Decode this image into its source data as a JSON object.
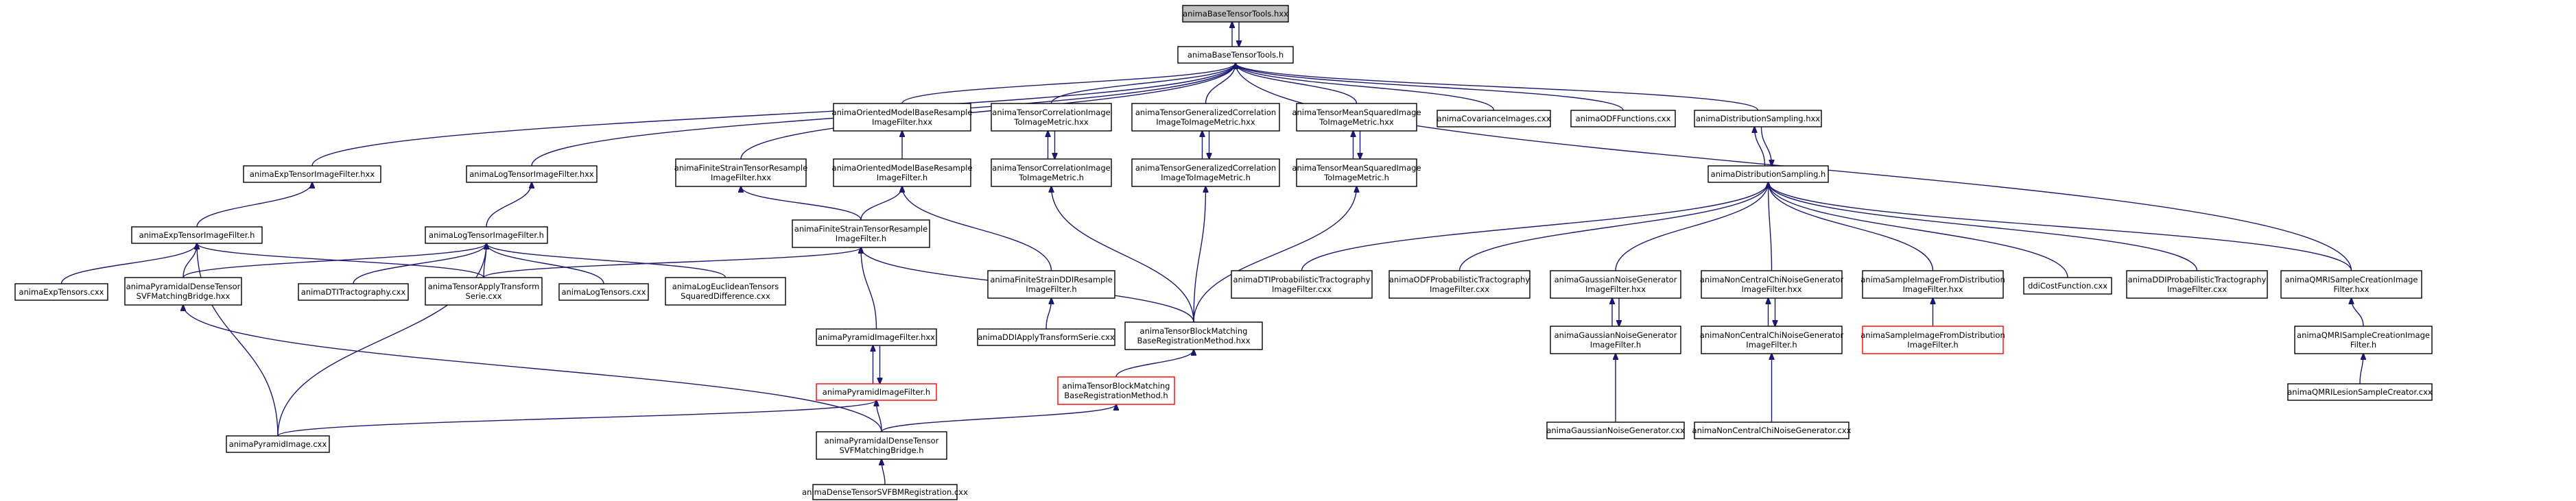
{
  "colors": {
    "edge": "#191970",
    "node_border": "#000000",
    "node_fill": "#ffffff",
    "highlight_fill": "#bfbfbf",
    "highlight_border": "#000000",
    "red_border": "#ff0000"
  },
  "nodes": [
    {
      "id": "n_base_hxx",
      "lines": [
        "animaBaseTensorTools.hxx"
      ],
      "style": "highlight"
    },
    {
      "id": "n_base_h",
      "lines": [
        "animaBaseTensorTools.h"
      ],
      "style": "normal"
    },
    {
      "id": "n_exp_filt_hxx",
      "lines": [
        "animaExpTensorImageFilter.hxx"
      ],
      "style": "normal"
    },
    {
      "id": "n_log_filt_hxx",
      "lines": [
        "animaLogTensorImageFilter.hxx"
      ],
      "style": "normal"
    },
    {
      "id": "n_fs_resample_hxx",
      "lines": [
        "animaFiniteStrainTensorResample",
        "ImageFilter.hxx"
      ],
      "style": "normal"
    },
    {
      "id": "n_om_base_hxx",
      "lines": [
        "animaOrientedModelBaseResample",
        "ImageFilter.hxx"
      ],
      "style": "normal"
    },
    {
      "id": "n_tc_metric_hxx",
      "lines": [
        "animaTensorCorrelationImage",
        "ToImageMetric.hxx"
      ],
      "style": "normal"
    },
    {
      "id": "n_tgc_metric_hxx",
      "lines": [
        "animaTensorGeneralizedCorrelation",
        "ImageToImageMetric.hxx"
      ],
      "style": "normal"
    },
    {
      "id": "n_tms_metric_hxx",
      "lines": [
        "animaTensorMeanSquaredImage",
        "ToImageMetric.hxx"
      ],
      "style": "normal"
    },
    {
      "id": "n_cov_cxx",
      "lines": [
        "animaCovarianceImages.cxx"
      ],
      "style": "normal"
    },
    {
      "id": "n_odf_cxx",
      "lines": [
        "animaODFFunctions.cxx"
      ],
      "style": "normal"
    },
    {
      "id": "n_dist_hxx",
      "lines": [
        "animaDistributionSampling.hxx"
      ],
      "style": "normal"
    },
    {
      "id": "n_qmri_hxx",
      "lines": [
        "animaQMRISampleCreationImage",
        "Filter.hxx"
      ],
      "style": "normal"
    },
    {
      "id": "n_om_base_h",
      "lines": [
        "animaOrientedModelBaseResample",
        "ImageFilter.h"
      ],
      "style": "normal"
    },
    {
      "id": "n_tc_metric_h",
      "lines": [
        "animaTensorCorrelationImage",
        "ToImageMetric.h"
      ],
      "style": "normal"
    },
    {
      "id": "n_tgc_metric_h",
      "lines": [
        "animaTensorGeneralizedCorrelation",
        "ImageToImageMetric.h"
      ],
      "style": "normal"
    },
    {
      "id": "n_tms_metric_h",
      "lines": [
        "animaTensorMeanSquaredImage",
        "ToImageMetric.h"
      ],
      "style": "normal"
    },
    {
      "id": "n_dist_h",
      "lines": [
        "animaDistributionSampling.h"
      ],
      "style": "normal"
    },
    {
      "id": "n_exp_filt_h",
      "lines": [
        "animaExpTensorImageFilter.h"
      ],
      "style": "normal"
    },
    {
      "id": "n_log_filt_h",
      "lines": [
        "animaLogTensorImageFilter.h"
      ],
      "style": "normal"
    },
    {
      "id": "n_fs_resample_h",
      "lines": [
        "animaFiniteStrainTensorResample",
        "ImageFilter.h"
      ],
      "style": "normal"
    },
    {
      "id": "n_fsddi_h",
      "lines": [
        "animaFiniteStrainDDIResample",
        "ImageFilter.h"
      ],
      "style": "normal"
    },
    {
      "id": "n_dti_prob_cxx",
      "lines": [
        "animaDTIProbabilisticTractography",
        "ImageFilter.cxx"
      ],
      "style": "normal"
    },
    {
      "id": "n_odf_prob_cxx",
      "lines": [
        "animaODFProbabilisticTractography",
        "ImageFilter.cxx"
      ],
      "style": "normal"
    },
    {
      "id": "n_gauss_hxx",
      "lines": [
        "animaGaussianNoiseGenerator",
        "ImageFilter.hxx"
      ],
      "style": "normal"
    },
    {
      "id": "n_ncchi_hxx",
      "lines": [
        "animaNonCentralChiNoiseGenerator",
        "ImageFilter.hxx"
      ],
      "style": "normal"
    },
    {
      "id": "n_sample_hxx",
      "lines": [
        "animaSampleImageFromDistribution",
        "ImageFilter.hxx"
      ],
      "style": "normal"
    },
    {
      "id": "n_ddicost_cxx",
      "lines": [
        "ddiCostFunction.cxx"
      ],
      "style": "normal"
    },
    {
      "id": "n_ddi_prob_cxx",
      "lines": [
        "animaDDIProbabilisticTractography",
        "ImageFilter.cxx"
      ],
      "style": "normal"
    },
    {
      "id": "n_qmri_h",
      "lines": [
        "animaQMRISampleCreationImage",
        "Filter.h"
      ],
      "style": "normal"
    },
    {
      "id": "n_exp_cxx",
      "lines": [
        "animaExpTensors.cxx"
      ],
      "style": "normal"
    },
    {
      "id": "n_pyr_dense_bridge_hxx",
      "lines": [
        "animaPyramidalDenseTensor",
        "SVFMatchingBridge.hxx"
      ],
      "style": "normal"
    },
    {
      "id": "n_dti_tract_cxx",
      "lines": [
        "animaDTITractography.cxx"
      ],
      "style": "normal"
    },
    {
      "id": "n_apply_transform_cxx",
      "lines": [
        "animaTensorApplyTransform",
        "Serie.cxx"
      ],
      "style": "normal"
    },
    {
      "id": "n_log_cxx",
      "lines": [
        "animaLogTensors.cxx"
      ],
      "style": "normal"
    },
    {
      "id": "n_logeuc_cxx",
      "lines": [
        "animaLogEuclideanTensors",
        "SquaredDifference.cxx"
      ],
      "style": "normal"
    },
    {
      "id": "n_pyr_filt_hxx",
      "lines": [
        "animaPyramidImageFilter.hxx"
      ],
      "style": "normal"
    },
    {
      "id": "n_ddi_apply_cxx",
      "lines": [
        "animaDDIApplyTransformSerie.cxx"
      ],
      "style": "normal"
    },
    {
      "id": "n_tbm_hxx",
      "lines": [
        "animaTensorBlockMatching",
        "BaseRegistrationMethod.hxx"
      ],
      "style": "normal"
    },
    {
      "id": "n_gauss_h",
      "lines": [
        "animaGaussianNoiseGenerator",
        "ImageFilter.h"
      ],
      "style": "normal"
    },
    {
      "id": "n_ncchi_h",
      "lines": [
        "animaNonCentralChiNoiseGenerator",
        "ImageFilter.h"
      ],
      "style": "normal"
    },
    {
      "id": "n_sample_h",
      "lines": [
        "animaSampleImageFromDistribution",
        "ImageFilter.h"
      ],
      "style": "red"
    },
    {
      "id": "n_qmri_lesion_cxx",
      "lines": [
        "animaQMRILesionSampleCreator.cxx"
      ],
      "style": "normal"
    },
    {
      "id": "n_pyr_filt_h",
      "lines": [
        "animaPyramidImageFilter.h"
      ],
      "style": "red"
    },
    {
      "id": "n_tbm_h",
      "lines": [
        "animaTensorBlockMatching",
        "BaseRegistrationMethod.h"
      ],
      "style": "red"
    },
    {
      "id": "n_gauss_cxx",
      "lines": [
        "animaGaussianNoiseGenerator.cxx"
      ],
      "style": "normal"
    },
    {
      "id": "n_ncchi_cxx",
      "lines": [
        "animaNonCentralChiNoiseGenerator.cxx"
      ],
      "style": "normal"
    },
    {
      "id": "n_pyr_img_cxx",
      "lines": [
        "animaPyramidImage.cxx"
      ],
      "style": "normal"
    },
    {
      "id": "n_pyr_dense_bridge_h",
      "lines": [
        "animaPyramidalDenseTensor",
        "SVFMatchingBridge.h"
      ],
      "style": "normal"
    },
    {
      "id": "n_dense_svfbm_cxx",
      "lines": [
        "animaDenseTensorSVFBMRegistration.cxx"
      ],
      "style": "normal"
    }
  ],
  "edges": [
    [
      "n_base_h",
      "n_base_hxx"
    ],
    [
      "n_base_hxx",
      "n_base_h"
    ],
    [
      "n_exp_filt_hxx",
      "n_base_h"
    ],
    [
      "n_log_filt_hxx",
      "n_base_h"
    ],
    [
      "n_fs_resample_hxx",
      "n_base_h"
    ],
    [
      "n_om_base_hxx",
      "n_base_h"
    ],
    [
      "n_tc_metric_hxx",
      "n_base_h"
    ],
    [
      "n_tgc_metric_hxx",
      "n_base_h"
    ],
    [
      "n_tms_metric_hxx",
      "n_base_h"
    ],
    [
      "n_cov_cxx",
      "n_base_h"
    ],
    [
      "n_odf_cxx",
      "n_base_h"
    ],
    [
      "n_dist_hxx",
      "n_base_h"
    ],
    [
      "n_qmri_hxx",
      "n_base_h"
    ],
    [
      "n_exp_filt_h",
      "n_exp_filt_hxx"
    ],
    [
      "n_log_filt_h",
      "n_log_filt_hxx"
    ],
    [
      "n_fs_resample_h",
      "n_fs_resample_hxx"
    ],
    [
      "n_om_base_h",
      "n_om_base_hxx"
    ],
    [
      "n_tc_metric_h",
      "n_tc_metric_hxx"
    ],
    [
      "n_tc_metric_hxx",
      "n_tc_metric_h"
    ],
    [
      "n_tgc_metric_h",
      "n_tgc_metric_hxx"
    ],
    [
      "n_tgc_metric_hxx",
      "n_tgc_metric_h"
    ],
    [
      "n_tms_metric_h",
      "n_tms_metric_hxx"
    ],
    [
      "n_tms_metric_hxx",
      "n_tms_metric_h"
    ],
    [
      "n_dist_h",
      "n_dist_hxx"
    ],
    [
      "n_dist_hxx",
      "n_dist_h"
    ],
    [
      "n_fs_resample_h",
      "n_om_base_h"
    ],
    [
      "n_fsddi_h",
      "n_om_base_h"
    ],
    [
      "n_tbm_hxx",
      "n_tc_metric_h"
    ],
    [
      "n_tbm_hxx",
      "n_tgc_metric_h"
    ],
    [
      "n_tbm_hxx",
      "n_tms_metric_h"
    ],
    [
      "n_dti_prob_cxx",
      "n_dist_h"
    ],
    [
      "n_odf_prob_cxx",
      "n_dist_h"
    ],
    [
      "n_gauss_hxx",
      "n_dist_h"
    ],
    [
      "n_ncchi_hxx",
      "n_dist_h"
    ],
    [
      "n_sample_hxx",
      "n_dist_h"
    ],
    [
      "n_ddicost_cxx",
      "n_dist_h"
    ],
    [
      "n_ddi_prob_cxx",
      "n_dist_h"
    ],
    [
      "n_qmri_hxx",
      "n_dist_h"
    ],
    [
      "n_qmri_h",
      "n_qmri_hxx"
    ],
    [
      "n_exp_cxx",
      "n_exp_filt_h"
    ],
    [
      "n_pyr_dense_bridge_hxx",
      "n_exp_filt_h"
    ],
    [
      "n_apply_transform_cxx",
      "n_exp_filt_h"
    ],
    [
      "n_pyr_img_cxx",
      "n_exp_filt_h"
    ],
    [
      "n_dti_tract_cxx",
      "n_log_filt_h"
    ],
    [
      "n_apply_transform_cxx",
      "n_log_filt_h"
    ],
    [
      "n_log_cxx",
      "n_log_filt_h"
    ],
    [
      "n_logeuc_cxx",
      "n_log_filt_h"
    ],
    [
      "n_pyr_img_cxx",
      "n_log_filt_h"
    ],
    [
      "n_pyr_dense_bridge_hxx",
      "n_log_filt_h"
    ],
    [
      "n_pyr_filt_hxx",
      "n_fs_resample_h"
    ],
    [
      "n_tbm_hxx",
      "n_fs_resample_h"
    ],
    [
      "n_apply_transform_cxx",
      "n_fs_resample_h"
    ],
    [
      "n_ddi_apply_cxx",
      "n_fsddi_h"
    ],
    [
      "n_gauss_h",
      "n_gauss_hxx"
    ],
    [
      "n_gauss_hxx",
      "n_gauss_h"
    ],
    [
      "n_ncchi_h",
      "n_ncchi_hxx"
    ],
    [
      "n_ncchi_hxx",
      "n_ncchi_h"
    ],
    [
      "n_sample_h",
      "n_sample_hxx"
    ],
    [
      "n_qmri_lesion_cxx",
      "n_qmri_h"
    ],
    [
      "n_pyr_filt_h",
      "n_pyr_filt_hxx"
    ],
    [
      "n_pyr_filt_hxx",
      "n_pyr_filt_h"
    ],
    [
      "n_tbm_h",
      "n_tbm_hxx"
    ],
    [
      "n_gauss_cxx",
      "n_gauss_h"
    ],
    [
      "n_ncchi_cxx",
      "n_ncchi_h"
    ],
    [
      "n_pyr_img_cxx",
      "n_pyr_filt_h"
    ],
    [
      "n_pyr_dense_bridge_h",
      "n_pyr_filt_h"
    ],
    [
      "n_pyr_dense_bridge_h",
      "n_tbm_h"
    ],
    [
      "n_pyr_dense_bridge_h",
      "n_pyr_dense_bridge_hxx"
    ],
    [
      "n_dense_svfbm_cxx",
      "n_pyr_dense_bridge_h"
    ]
  ]
}
